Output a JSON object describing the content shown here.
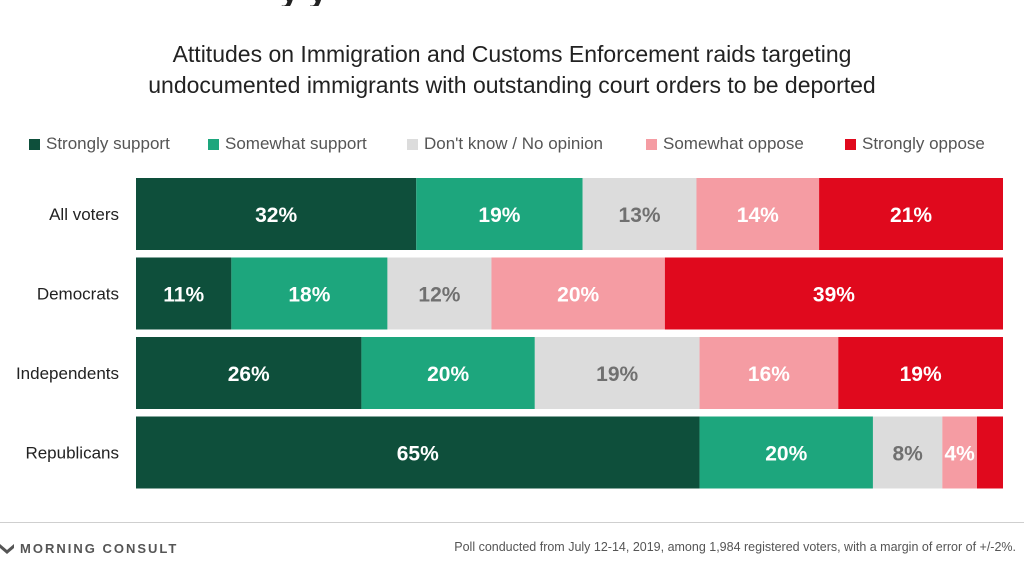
{
  "chart_data": {
    "type": "bar",
    "orientation": "horizontal",
    "stacked": true,
    "title": "Attitudes on Immigration and Customs Enforcement raids targeting undocumented immigrants with outstanding court orders to be deported",
    "title_lines": [
      "Attitudes on Immigration and Customs Enforcement raids targeting",
      "undocumented immigrants with outstanding court orders to be deported"
    ],
    "categories": [
      "All voters",
      "Democrats",
      "Independents",
      "Republicans"
    ],
    "series": [
      {
        "name": "Strongly support",
        "color": "#0e4f3b",
        "label_color": "#ffffff",
        "values": [
          32,
          11,
          26,
          65
        ]
      },
      {
        "name": "Somewhat support",
        "color": "#1da67d",
        "label_color": "#ffffff",
        "values": [
          19,
          18,
          20,
          20
        ]
      },
      {
        "name": "Don't know / No opinion",
        "color": "#dcdcdc",
        "label_color": "#707070",
        "values": [
          13,
          12,
          19,
          8
        ]
      },
      {
        "name": "Somewhat oppose",
        "color": "#f59ca3",
        "label_color": "#ffffff",
        "values": [
          14,
          20,
          16,
          4
        ]
      },
      {
        "name": "Strongly oppose",
        "color": "#e0091d",
        "label_color": "#ffffff",
        "values": [
          21,
          39,
          19,
          3
        ]
      }
    ],
    "value_labels": [
      [
        "32%",
        "19%",
        "13%",
        "14%",
        "21%"
      ],
      [
        "11%",
        "18%",
        "12%",
        "20%",
        "39%"
      ],
      [
        "26%",
        "20%",
        "19%",
        "16%",
        "19%"
      ],
      [
        "65%",
        "20%",
        "8%",
        "4%",
        ""
      ]
    ],
    "xlim": [
      0,
      100
    ],
    "legend_position": "top",
    "grid": false,
    "xlabel": "",
    "ylabel": ""
  },
  "header_fragment": "y y",
  "footer": {
    "brand": "MORNING CONSULT",
    "source_note": "Poll conducted from July 12-14, 2019, among 1,984 registered voters, with a margin of error of +/-2%."
  },
  "icons": {
    "brand": "morning-consult-logo-icon"
  }
}
